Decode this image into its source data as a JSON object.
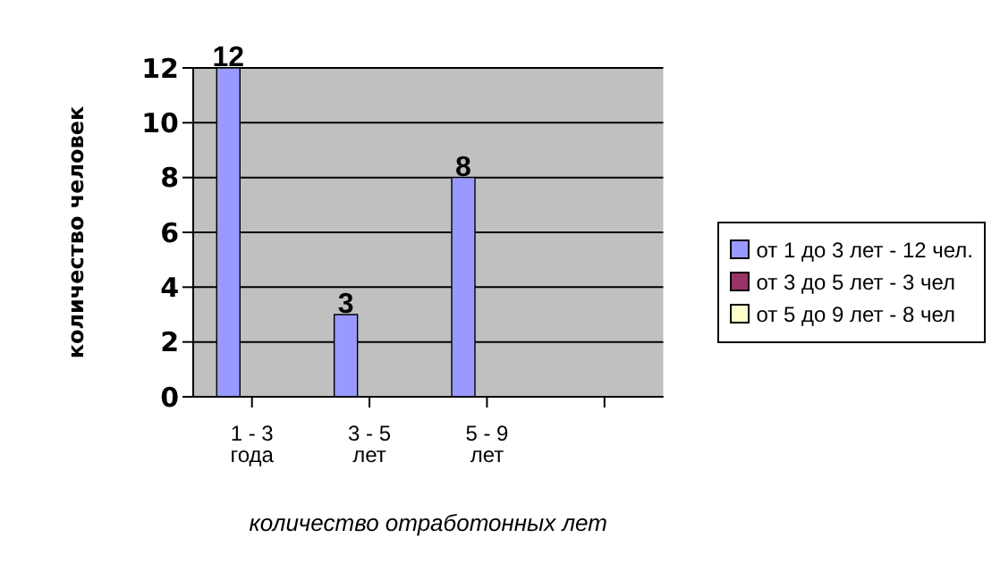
{
  "chart_data": {
    "type": "bar",
    "xlabel": "количество отработонных лет",
    "ylabel": "количество человек",
    "categories": [
      "1 - 3 года",
      "3 - 5 лет",
      "5 - 9 лет",
      null
    ],
    "series": [
      {
        "name": "от 1 до 3 лет - 12 чел.",
        "color": "#9999ff",
        "values": [
          12,
          3,
          8,
          null
        ]
      },
      {
        "name": "от 3 до 5 лет - 3 чел",
        "color": "#993366",
        "values": [
          null,
          null,
          null,
          null
        ]
      },
      {
        "name": "от 5 до 9 лет - 8 чел",
        "color": "#ffffcc",
        "values": [
          null,
          null,
          null,
          null
        ]
      }
    ],
    "ylim": [
      0,
      12
    ],
    "yticks": [
      0,
      2,
      4,
      6,
      8,
      10,
      12
    ],
    "grid": "y",
    "legend": "right",
    "data_labels": true
  }
}
